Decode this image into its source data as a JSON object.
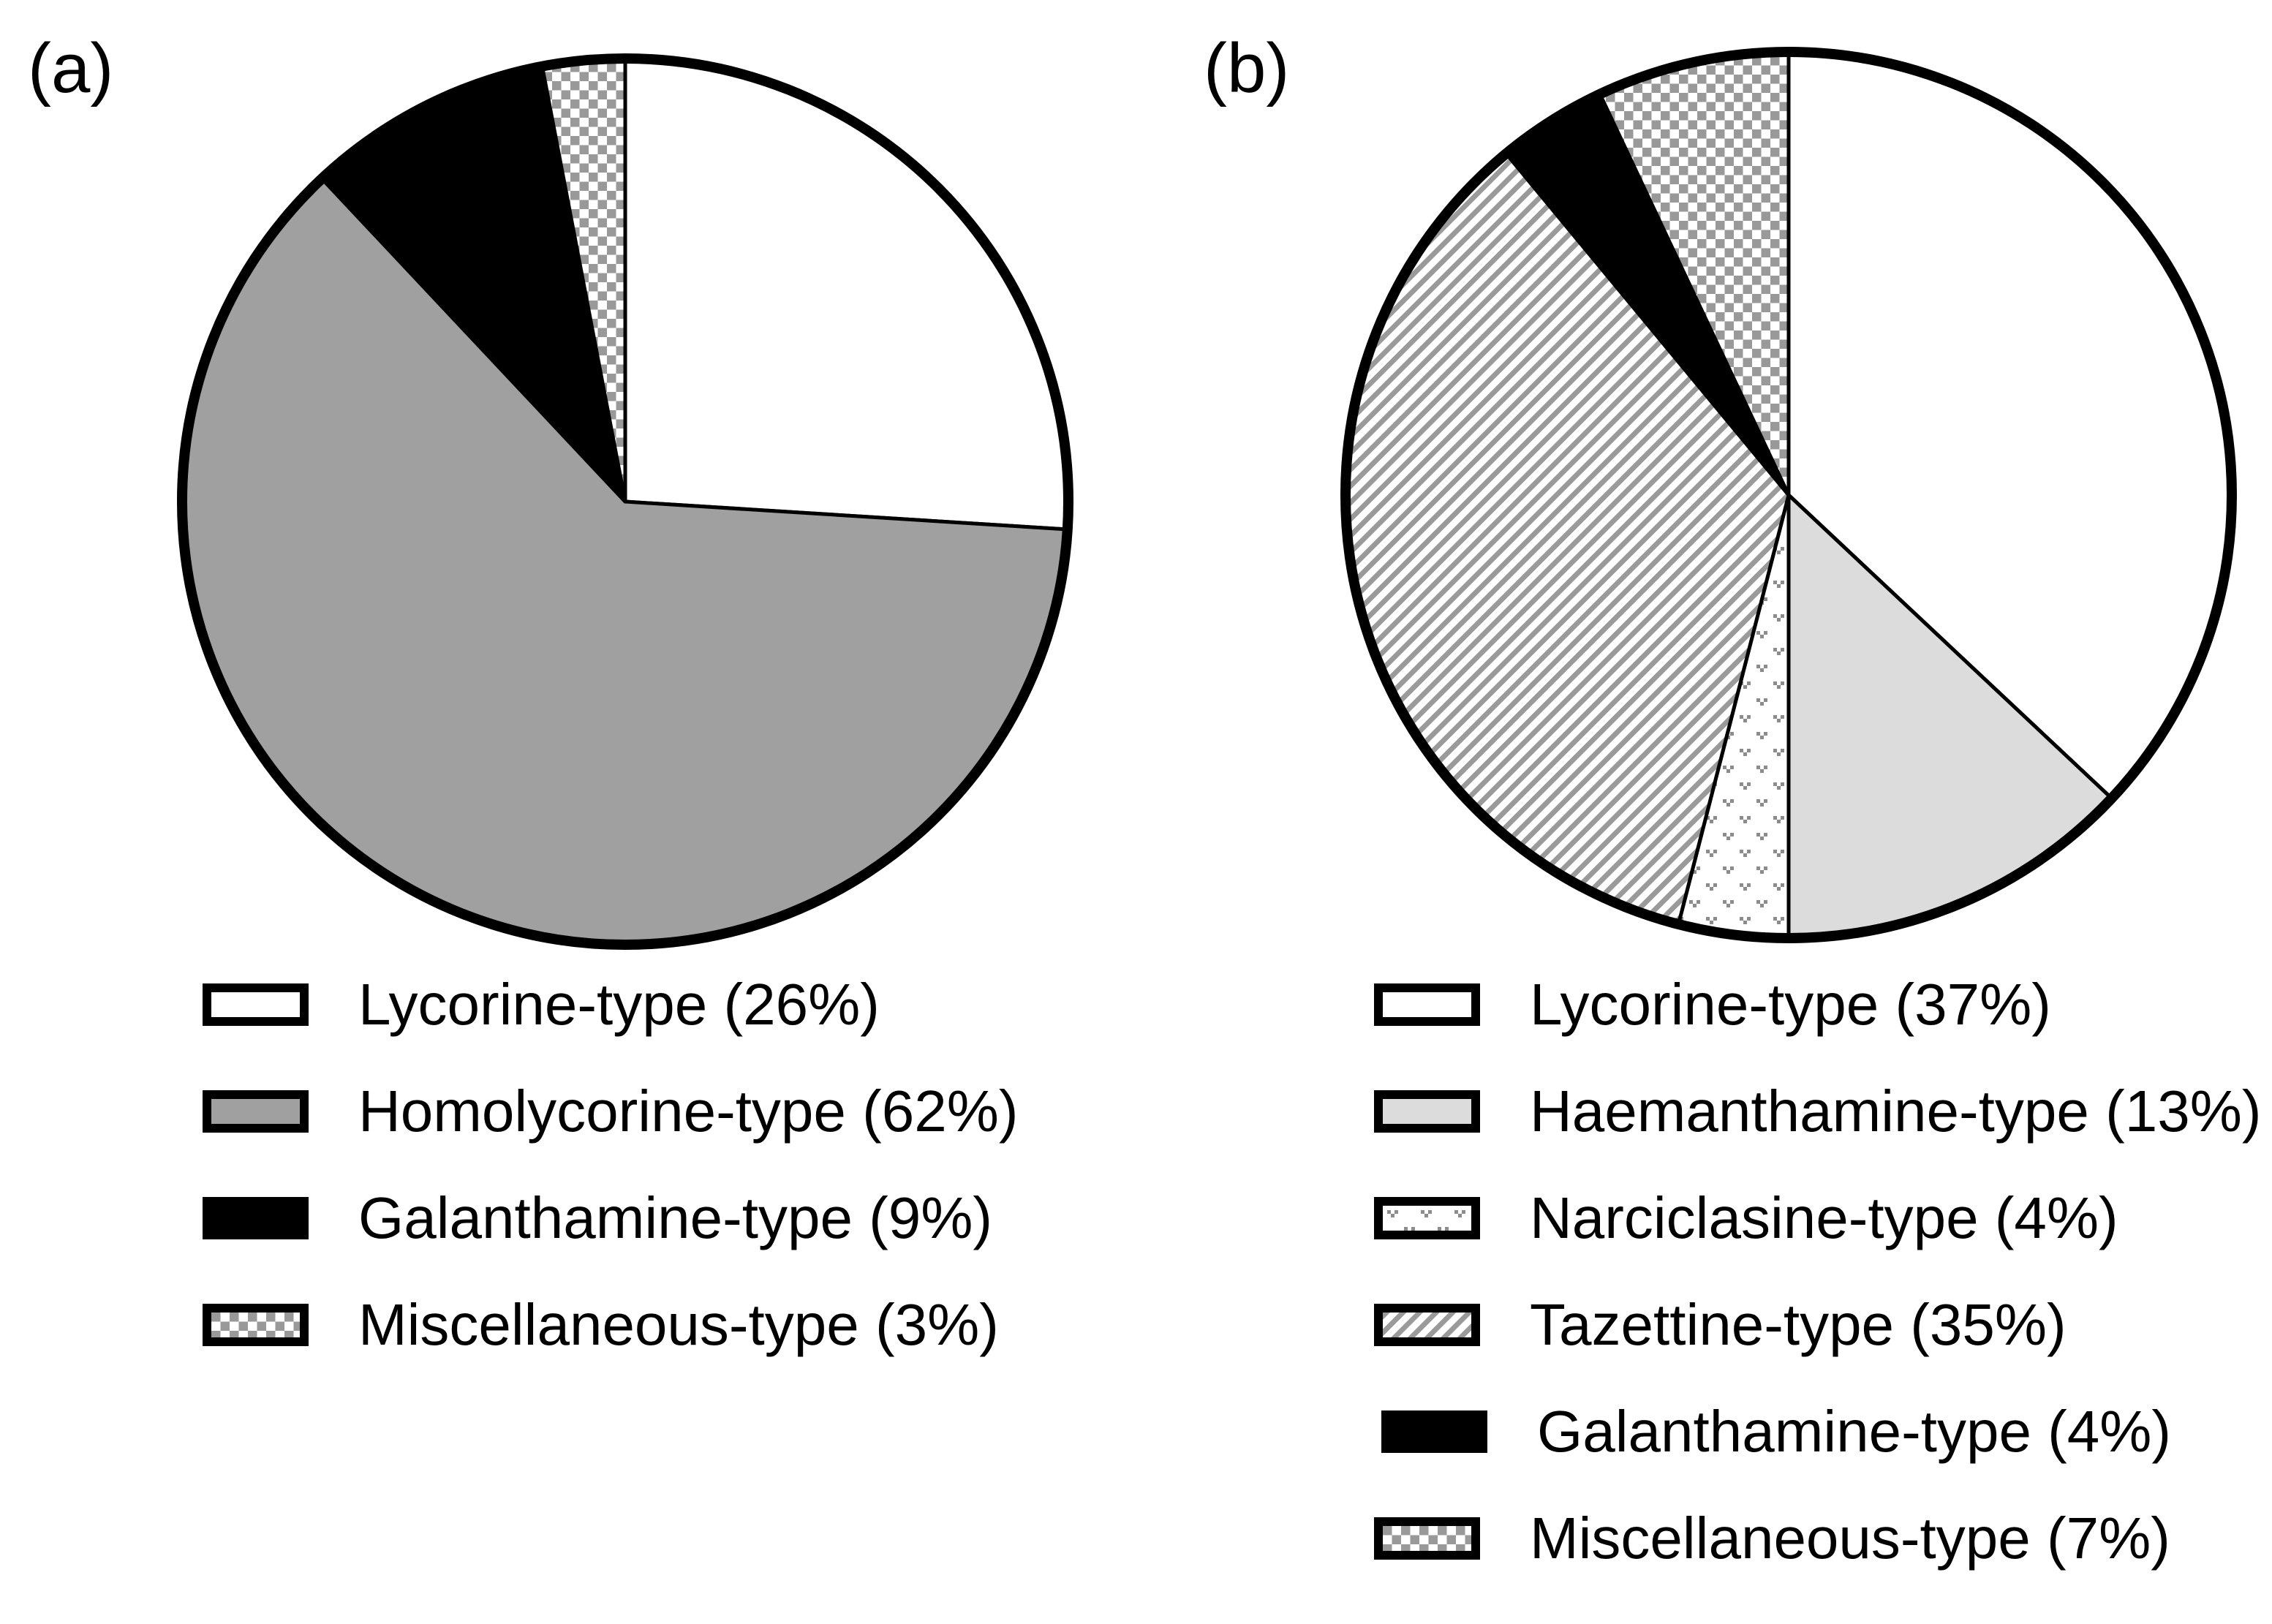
{
  "figure": {
    "panels": [
      {
        "label": "(a)"
      },
      {
        "label": "(b)"
      }
    ],
    "palette": {
      "black": "#000000",
      "white": "#ffffff",
      "mid_gray": "#a0a0a0",
      "light_gray": "#dcdcdc",
      "checker_gray": "#999999",
      "stripe_gray": "#9a9a9a",
      "divot_gray": "#8c8c8c",
      "outline": "#000000"
    }
  },
  "chart_data": [
    {
      "type": "pie",
      "panel_label": "(a)",
      "start_angle_deg": 0,
      "direction": "clockwise",
      "legend_position": "below",
      "slices": [
        {
          "label": "Lycorine-type",
          "value_pct": 26,
          "legend_label": "Lycorine-type (26%)",
          "fill_style": "white"
        },
        {
          "label": "Homolycorine-type",
          "value_pct": 62,
          "legend_label": "Homolycorine-type (62%)",
          "fill_style": "mid-gray"
        },
        {
          "label": "Galanthamine-type",
          "value_pct": 9,
          "legend_label": "Galanthamine-type (9%)",
          "fill_style": "black"
        },
        {
          "label": "Miscellaneous-type",
          "value_pct": 3,
          "legend_label": "Miscellaneous-type (3%)",
          "fill_style": "checker"
        }
      ]
    },
    {
      "type": "pie",
      "panel_label": "(b)",
      "start_angle_deg": 0,
      "direction": "clockwise",
      "legend_position": "below",
      "slices": [
        {
          "label": "Lycorine-type",
          "value_pct": 37,
          "legend_label": "Lycorine-type (37%)",
          "fill_style": "white"
        },
        {
          "label": "Haemanthamine-type",
          "value_pct": 13,
          "legend_label": "Haemanthamine-type (13%)",
          "fill_style": "light-gray"
        },
        {
          "label": "Narciclasine-type",
          "value_pct": 4,
          "legend_label": "Narciclasine-type (4%)",
          "fill_style": "divot"
        },
        {
          "label": "Tazettine-type",
          "value_pct": 35,
          "legend_label": "Tazettine-type (35%)",
          "fill_style": "diagonal-stripes"
        },
        {
          "label": "Galanthamine-type",
          "value_pct": 4,
          "legend_label": "Galanthamine-type (4%)",
          "fill_style": "black"
        },
        {
          "label": "Miscellaneous-type",
          "value_pct": 7,
          "legend_label": "Miscellaneous-type (7%)",
          "fill_style": "checker"
        }
      ]
    }
  ]
}
